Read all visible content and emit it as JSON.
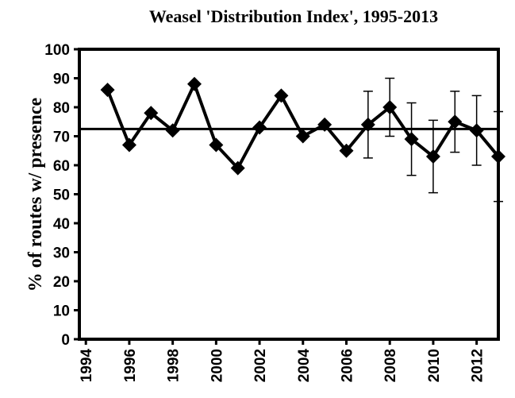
{
  "chart_data": {
    "type": "line",
    "title": "Weasel 'Distribution Index', 1995-2013",
    "y_label": "% of routes w/ presence",
    "x": [
      1995,
      1996,
      1997,
      1998,
      1999,
      2000,
      2001,
      2002,
      2003,
      2004,
      2005,
      2006,
      2007,
      2008,
      2009,
      2010,
      2011,
      2012,
      2013
    ],
    "series": [
      {
        "color": "#000000",
        "values": [
          86,
          67,
          78,
          72,
          88,
          67,
          59,
          73,
          84,
          70,
          74,
          65,
          74,
          80,
          69,
          63,
          75,
          72,
          63
        ],
        "errors": [
          null,
          null,
          null,
          null,
          null,
          null,
          null,
          null,
          null,
          null,
          null,
          null,
          11.5,
          10,
          12.5,
          12.5,
          10.5,
          12,
          15.5
        ]
      }
    ],
    "reference_line": 72.5,
    "xlim": [
      1993.7,
      2013
    ],
    "xticks": [
      1994,
      1996,
      1998,
      2000,
      2002,
      2004,
      2006,
      2008,
      2010,
      2012
    ],
    "ylim": [
      0,
      100
    ],
    "yticks": [
      0,
      10,
      20,
      30,
      40,
      50,
      60,
      70,
      80,
      90,
      100
    ],
    "grid": false
  }
}
